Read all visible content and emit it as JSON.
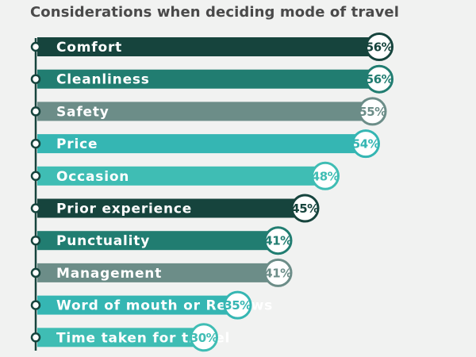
{
  "chart_data": {
    "type": "bar",
    "orientation": "horizontal",
    "title": "Considerations when deciding mode of travel",
    "categories": [
      "Comfort",
      "Cleanliness",
      "Safety",
      "Price",
      "Occasion",
      "Prior experience",
      "Punctuality",
      "Management",
      "Word of mouth or Reviews",
      "Time taken for travel"
    ],
    "values": [
      56,
      56,
      55,
      54,
      48,
      45,
      41,
      41,
      35,
      30
    ],
    "value_labels": [
      "56%",
      "56%",
      "55%",
      "54%",
      "48%",
      "45%",
      "41%",
      "41%",
      "35%",
      "30%"
    ],
    "unit": "%",
    "grid": false,
    "legend": "none",
    "colors": {
      "background": "#f1f2f1",
      "title": "#4a4a4a",
      "axis": "#16443d",
      "bars": [
        "#16443d",
        "#217d71",
        "#6c8d88",
        "#35b6b3",
        "#3fbdb4",
        "#16443d",
        "#217d71",
        "#6c8d88",
        "#35b6b3",
        "#3fbdb4"
      ]
    }
  }
}
